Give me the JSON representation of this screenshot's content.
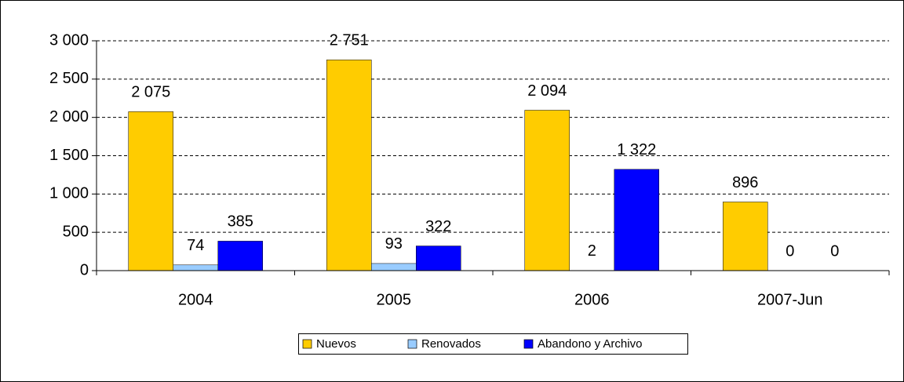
{
  "chart_data": {
    "type": "bar",
    "categories": [
      "2004",
      "2005",
      "2006",
      "2007-Jun"
    ],
    "series": [
      {
        "name": "Nuevos",
        "color": "#ffcc00",
        "values": [
          2075,
          2751,
          2094,
          896
        ],
        "value_labels": [
          "2 075",
          "2 751",
          "2 094",
          "896"
        ]
      },
      {
        "name": "Renovados",
        "color": "#99ccff",
        "values": [
          74,
          93,
          2,
          0
        ]
      },
      {
        "name": "Abandono y Archivo",
        "color": "#0000ff",
        "values": [
          385,
          322,
          1322,
          0
        ],
        "value_labels": [
          "385",
          "322",
          "1 322",
          "0"
        ]
      }
    ],
    "ylim": [
      0,
      3000
    ],
    "yticks": [
      0,
      500,
      {
        "value": 1000,
        "label": "1 000"
      },
      {
        "value": 1500,
        "label": "1 500"
      },
      {
        "value": 2000,
        "label": "2 000"
      },
      {
        "value": 2500,
        "label": "2 500"
      },
      {
        "value": 3000,
        "label": "3 000"
      }
    ],
    "grid": true,
    "legend": "bottom"
  }
}
